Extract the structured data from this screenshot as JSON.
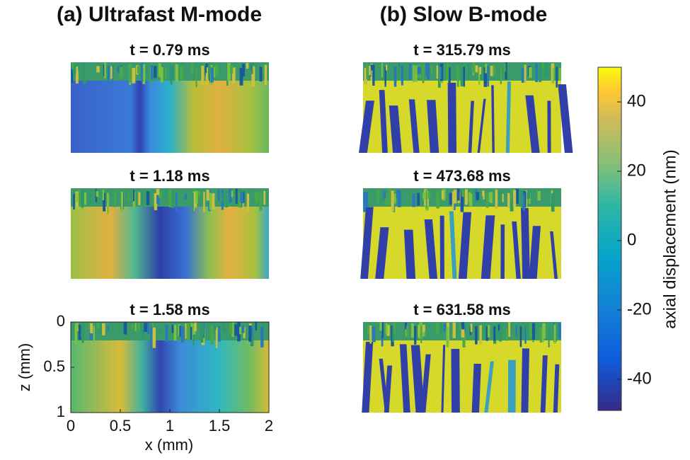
{
  "columns": [
    {
      "title": "(a) Ultrafast M-mode",
      "panels": [
        "t = 0.79 ms",
        "t = 1.18 ms",
        "t = 1.58 ms"
      ]
    },
    {
      "title": "(b) Slow B-mode",
      "panels": [
        "t = 315.79 ms",
        "t = 473.68 ms",
        "t = 631.58 ms"
      ]
    }
  ],
  "axes": {
    "xlabel": "x (mm)",
    "ylabel": "z (mm)",
    "xlim": [
      0,
      2
    ],
    "xticks": [
      0,
      0.5,
      1,
      1.5,
      2
    ],
    "ylim": [
      0,
      1
    ],
    "yticks": [
      0,
      0.5,
      1
    ]
  },
  "colorbar": {
    "label": "axial displacement (nm)",
    "lim": [
      -49,
      50
    ],
    "ticks": [
      -40,
      -20,
      0,
      20,
      40
    ]
  }
}
